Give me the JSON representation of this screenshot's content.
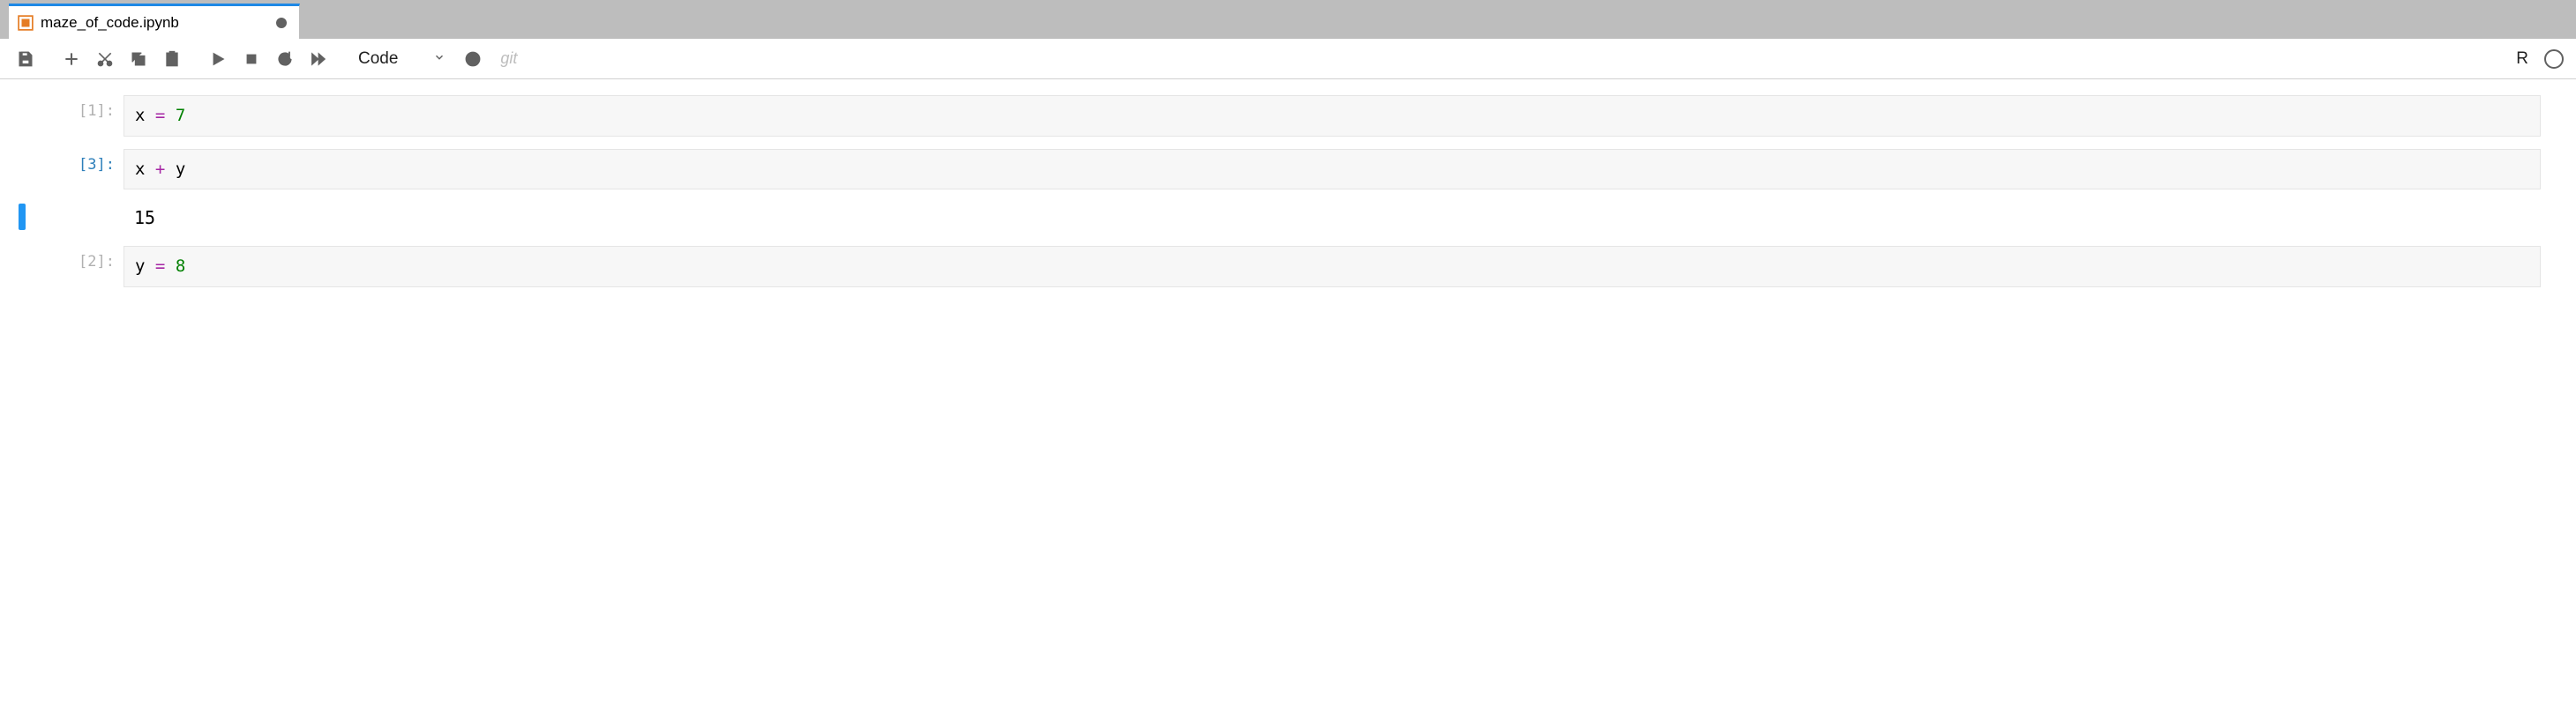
{
  "tab": {
    "title": "maze_of_code.ipynb",
    "dirty": true
  },
  "toolbar": {
    "cell_type_label": "Code",
    "git_label": "git",
    "kernel_name": "R"
  },
  "cells": [
    {
      "selected": false,
      "exec_count": "1",
      "prompt_active": false,
      "tokens": [
        {
          "t": "name",
          "v": "x"
        },
        {
          "t": "space",
          "v": " "
        },
        {
          "t": "op",
          "v": "="
        },
        {
          "t": "space",
          "v": " "
        },
        {
          "t": "num",
          "v": "7"
        }
      ],
      "output": null
    },
    {
      "selected": true,
      "exec_count": "3",
      "prompt_active": true,
      "tokens": [
        {
          "t": "name",
          "v": "x"
        },
        {
          "t": "space",
          "v": " "
        },
        {
          "t": "op",
          "v": "+"
        },
        {
          "t": "space",
          "v": " "
        },
        {
          "t": "name",
          "v": "y"
        }
      ],
      "output": "15"
    },
    {
      "selected": false,
      "exec_count": "2",
      "prompt_active": false,
      "tokens": [
        {
          "t": "name",
          "v": "y"
        },
        {
          "t": "space",
          "v": " "
        },
        {
          "t": "op",
          "v": "="
        },
        {
          "t": "space",
          "v": " "
        },
        {
          "t": "num",
          "v": "8"
        }
      ],
      "output": null
    }
  ]
}
